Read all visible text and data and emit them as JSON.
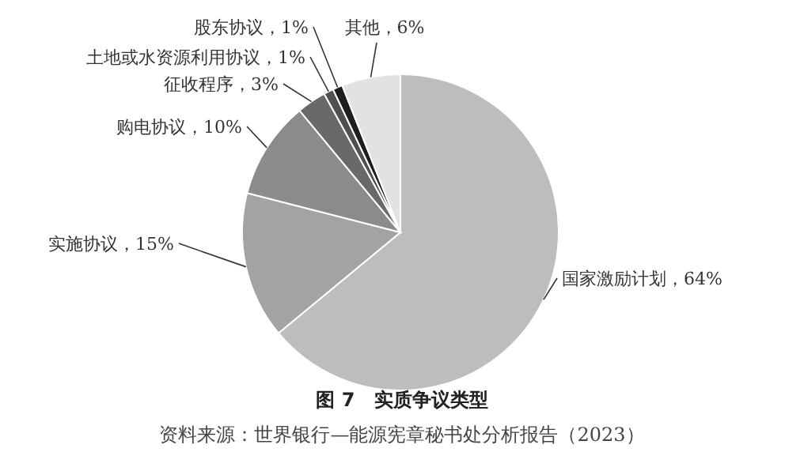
{
  "chart_data": {
    "type": "pie",
    "title": "图 7　实质争议类型",
    "categories": [
      "国家激励计划",
      "实施协议",
      "购电协议",
      "征收程序",
      "土地或水资源利用协议",
      "股东协议",
      "其他"
    ],
    "values": [
      64,
      15,
      10,
      3,
      1,
      1,
      6
    ],
    "value_labels": [
      "，64%",
      "，15%",
      "，10%",
      "，3%",
      "，1%",
      "，1%",
      "，6%"
    ],
    "colors": [
      "#bcbdbf",
      "#a2a3a5",
      "#8a8b8d",
      "#69696b",
      "#505052",
      "#1e1e1e",
      "#e1e2e3"
    ],
    "legend": false,
    "annotations": [
      "资料来源：世界银行—能源宪章秘书处分析报告（2023）"
    ]
  }
}
